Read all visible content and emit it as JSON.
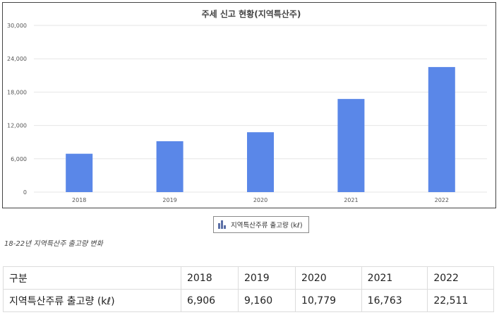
{
  "chart_data": {
    "type": "bar",
    "title": "주세 신고 현황(지역특산주)",
    "categories": [
      "2018",
      "2019",
      "2020",
      "2021",
      "2022"
    ],
    "series": [
      {
        "name": "지역특산주류 출고량 (kℓ)",
        "values": [
          6906,
          9160,
          10779,
          16763,
          22511
        ],
        "color": "#5a87e8"
      }
    ],
    "yticks": [
      "0",
      "6,000",
      "12,000",
      "18,000",
      "24,000",
      "30,000"
    ],
    "ylim": [
      0,
      30000
    ],
    "grid": true,
    "legend": "bottom-center"
  },
  "caption": "18-22년 지역특산주 출고량 변화",
  "table": {
    "header": [
      "구분",
      "2018",
      "2019",
      "2020",
      "2021",
      "2022"
    ],
    "rows": [
      [
        "지역특산주류 출고량 (kℓ)",
        "6,906",
        "9,160",
        "10,779",
        "16,763",
        "22,511"
      ]
    ]
  }
}
